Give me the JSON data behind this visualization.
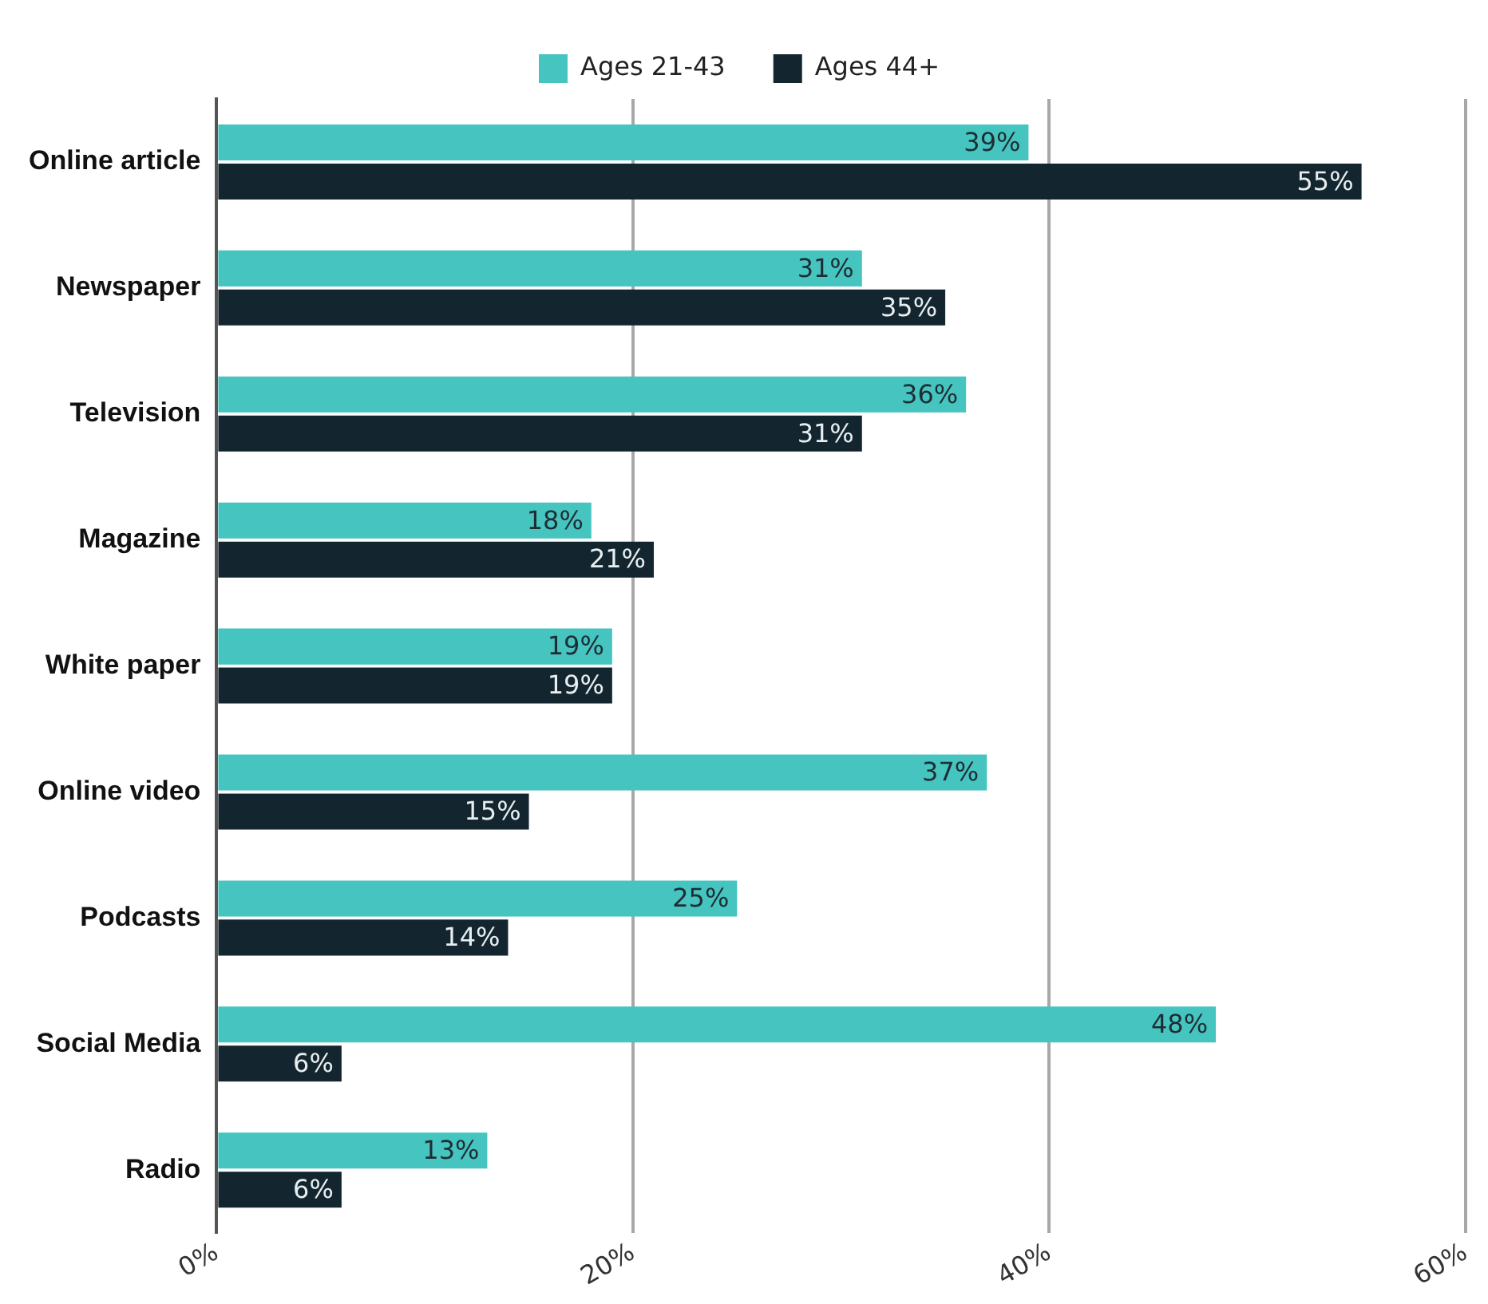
{
  "chart_data": {
    "type": "bar",
    "orientation": "horizontal",
    "categories": [
      "Online article",
      "Newspaper",
      "Television",
      "Magazine",
      "White paper",
      "Online video",
      "Podcasts",
      "Social Media",
      "Radio"
    ],
    "series": [
      {
        "name": "Ages 21-43",
        "color": "#45c4c0",
        "values": [
          39,
          31,
          36,
          18,
          19,
          37,
          25,
          48,
          13
        ],
        "value_labels": [
          "39%",
          "31%",
          "36%",
          "18%",
          "19%",
          "37%",
          "25%",
          "48%",
          "13%"
        ]
      },
      {
        "name": "Ages 44+",
        "color": "#13262f",
        "values": [
          55,
          35,
          31,
          21,
          19,
          15,
          14,
          6,
          6
        ],
        "value_labels": [
          "55%",
          "35%",
          "31%",
          "21%",
          "19%",
          "15%",
          "14%",
          "6%",
          "6%"
        ]
      }
    ],
    "xlim": [
      0,
      60
    ],
    "xticks": [
      {
        "value": 0,
        "label": "0%"
      },
      {
        "value": 20,
        "label": "20%"
      },
      {
        "value": 40,
        "label": "40%"
      },
      {
        "value": 60,
        "label": "60%"
      }
    ],
    "grid": "x",
    "legend": "top"
  }
}
